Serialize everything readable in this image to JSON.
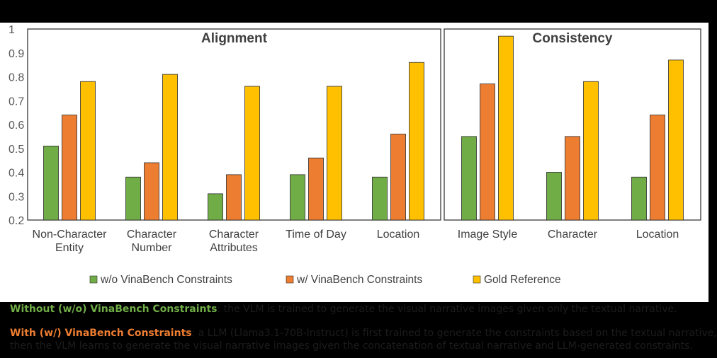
{
  "chart_data": {
    "type": "bar",
    "ylim": [
      0.2,
      1
    ],
    "yticks": [
      "1",
      "0.9",
      "0.8",
      "0.7",
      "0.6",
      "0.5",
      "0.4",
      "0.3",
      "0.2"
    ],
    "grid": false,
    "legend_placement": "bottom",
    "series": [
      {
        "name": "w/o VinaBench Constraints",
        "color": "#70ad47"
      },
      {
        "name": "w/ VinaBench Constraints",
        "color": "#ed7d31"
      },
      {
        "name": "Gold Reference",
        "color": "#ffc000"
      }
    ],
    "panels": [
      {
        "title": "Alignment",
        "categories": [
          {
            "label": [
              "Non-Character",
              "Entity"
            ],
            "values": [
              0.51,
              0.64,
              0.78
            ]
          },
          {
            "label": [
              "Character",
              "Number"
            ],
            "values": [
              0.38,
              0.44,
              0.81
            ]
          },
          {
            "label": [
              "Character",
              "Attributes"
            ],
            "values": [
              0.31,
              0.39,
              0.76
            ]
          },
          {
            "label": [
              "Time of Day"
            ],
            "values": [
              0.39,
              0.46,
              0.76
            ]
          },
          {
            "label": [
              "Location"
            ],
            "values": [
              0.38,
              0.56,
              0.86
            ]
          }
        ]
      },
      {
        "title": "Consistency",
        "categories": [
          {
            "label": [
              "Image Style"
            ],
            "values": [
              0.55,
              0.77,
              0.97
            ]
          },
          {
            "label": [
              "Character"
            ],
            "values": [
              0.4,
              0.55,
              0.78
            ]
          },
          {
            "label": [
              "Location"
            ],
            "values": [
              0.38,
              0.64,
              0.87
            ]
          }
        ]
      }
    ]
  },
  "captions": [
    {
      "term": "Without (w/o) VinaBench Constraints",
      "term_color": "#70ad47",
      "lines": [
        ": the VLM is trained to generate the visual narrative images given only the textual narrative."
      ]
    },
    {
      "term": "With (w/) VinaBench Constraints",
      "term_color": "#ed7d31",
      "lines": [
        ": a LLM (Llama3.1-70B-Instruct) is first trained to generate the constraints based on the textual narrative,",
        "then the VLM learns to generate the visual narrative images given the concatenation of textual narrative and LLM-generated constraints."
      ]
    }
  ]
}
